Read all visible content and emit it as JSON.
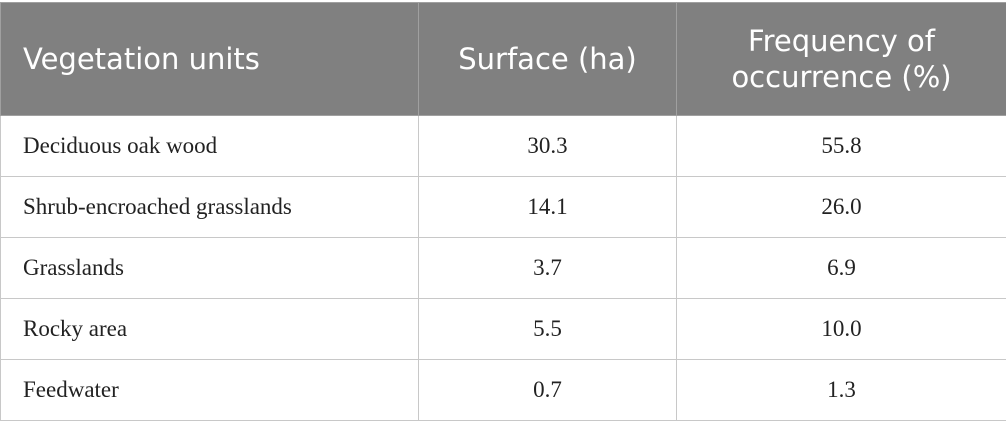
{
  "table": {
    "header": [
      "Vegetation units",
      "Surface (ha)",
      "Frequency of occurrence (%)"
    ],
    "rows": [
      [
        "Deciduous oak wood",
        "30.3",
        "55.8"
      ],
      [
        "Shrub-encroached grasslands",
        "14.1",
        "26.0"
      ],
      [
        "Grasslands",
        "3.7",
        "6.9"
      ],
      [
        "Rocky area",
        "5.5",
        "10.0"
      ],
      [
        "Feedwater",
        "0.7",
        "1.3"
      ]
    ]
  }
}
